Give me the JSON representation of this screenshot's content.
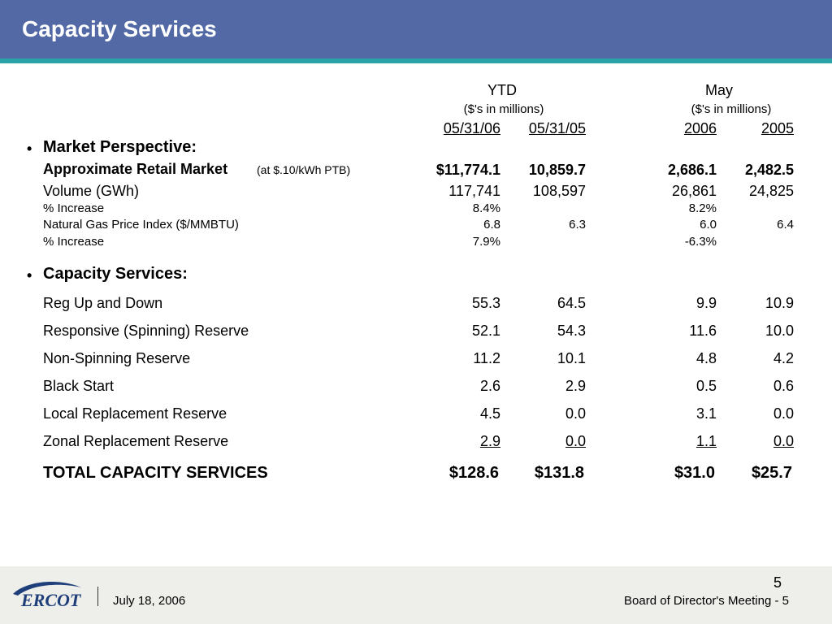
{
  "slide": {
    "title": "Capacity Services",
    "page_number": "5"
  },
  "columns": {
    "ytd_header": "YTD",
    "ytd_unit": "($'s in millions)",
    "may_header": "May",
    "may_unit": "($'s in millions)",
    "ytd_col1": "05/31/06",
    "ytd_col2": "05/31/05",
    "may_col1": "2006",
    "may_col2": "2005"
  },
  "market": {
    "heading": "Market Perspective:",
    "retail": {
      "label": "Approximate Retail Market",
      "note": "(at $.10/kWh PTB)",
      "v1": "$11,774.1",
      "v2": "10,859.7",
      "v3": "2,686.1",
      "v4": "2,482.5"
    },
    "volume": {
      "label": "Volume (GWh)",
      "v1": "117,741",
      "v2": "108,597",
      "v3": "26,861",
      "v4": "24,825"
    },
    "vol_increase": {
      "label": "% Increase",
      "v1": "8.4%",
      "v3": "8.2%"
    },
    "gas": {
      "label": "Natural Gas Price Index ($/MMBTU)",
      "v1": "6.8",
      "v2": "6.3",
      "v3": "6.0",
      "v4": "6.4"
    },
    "gas_increase": {
      "label": "% Increase",
      "v1": "7.9%",
      "v3": "-6.3%"
    }
  },
  "capacity": {
    "heading": "Capacity Services:",
    "rows": [
      {
        "label": "Reg Up and Down",
        "v1": "55.3",
        "v2": "64.5",
        "v3": "9.9",
        "v4": "10.9"
      },
      {
        "label": "Responsive (Spinning) Reserve",
        "v1": "52.1",
        "v2": "54.3",
        "v3": "11.6",
        "v4": "10.0"
      },
      {
        "label": "Non-Spinning Reserve",
        "v1": "11.2",
        "v2": "10.1",
        "v3": "4.8",
        "v4": "4.2"
      },
      {
        "label": "Black Start",
        "v1": "2.6",
        "v2": "2.9",
        "v3": "0.5",
        "v4": "0.6"
      },
      {
        "label": "Local Replacement Reserve",
        "v1": "4.5",
        "v2": "0.0",
        "v3": "3.1",
        "v4": "0.0"
      },
      {
        "label": "Zonal Replacement Reserve",
        "v1": "2.9",
        "v2": "0.0",
        "v3": "1.1",
        "v4": "0.0"
      }
    ],
    "total": {
      "label": "TOTAL CAPACITY SERVICES",
      "v1": "$128.6",
      "v2": "$131.8",
      "v3": "$31.0",
      "v4": "$25.7"
    }
  },
  "footer": {
    "logo_text": "ERCOT",
    "date": "July 18, 2006",
    "meeting": "Board of Director's Meeting - 5"
  }
}
